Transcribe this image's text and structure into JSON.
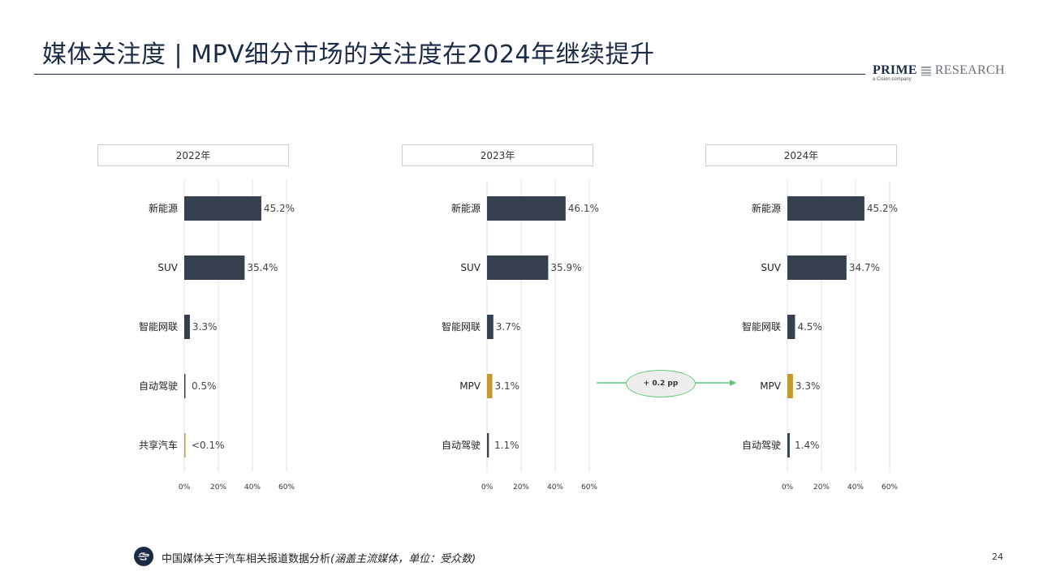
{
  "title": "媒体关注度 | MPV细分市场的关注度在2024年继续提升",
  "logo": {
    "brand_primary": "PRIME",
    "brand_secondary": "RESEARCH",
    "tagline": "a Cision company"
  },
  "colors": {
    "bar_default": "#36404f",
    "bar_highlight": "#c39a2f",
    "callout_arrow": "#5fc87a",
    "title": "#1c2b45",
    "gridline": "#e3e3e3"
  },
  "chart_data": [
    {
      "type": "bar",
      "orientation": "horizontal",
      "title": "2022年",
      "categories": [
        "新能源",
        "SUV",
        "智能网联",
        "自动驾驶",
        "共享汽车"
      ],
      "values": [
        45.2,
        35.4,
        3.3,
        0.5,
        0.05
      ],
      "value_labels": [
        "45.2%",
        "35.4%",
        "3.3%",
        "0.5%",
        "<0.1%"
      ],
      "highlight": [
        false,
        false,
        false,
        false,
        true
      ],
      "xlim": [
        0,
        60
      ],
      "x_ticks": [
        "0%",
        "20%",
        "40%",
        "60%"
      ],
      "grid": true
    },
    {
      "type": "bar",
      "orientation": "horizontal",
      "title": "2023年",
      "categories": [
        "新能源",
        "SUV",
        "智能网联",
        "MPV",
        "自动驾驶"
      ],
      "values": [
        46.1,
        35.9,
        3.7,
        3.1,
        1.1
      ],
      "value_labels": [
        "46.1%",
        "35.9%",
        "3.7%",
        "3.1%",
        "1.1%"
      ],
      "highlight": [
        false,
        false,
        false,
        true,
        false
      ],
      "xlim": [
        0,
        60
      ],
      "x_ticks": [
        "0%",
        "20%",
        "40%",
        "60%"
      ],
      "grid": true
    },
    {
      "type": "bar",
      "orientation": "horizontal",
      "title": "2024年",
      "categories": [
        "新能源",
        "SUV",
        "智能网联",
        "MPV",
        "自动驾驶"
      ],
      "values": [
        45.2,
        34.7,
        4.5,
        3.3,
        1.4
      ],
      "value_labels": [
        "45.2%",
        "34.7%",
        "4.5%",
        "3.3%",
        "1.4%"
      ],
      "highlight": [
        false,
        false,
        false,
        true,
        false
      ],
      "xlim": [
        0,
        60
      ],
      "x_ticks": [
        "0%",
        "20%",
        "40%",
        "60%"
      ],
      "grid": true
    }
  ],
  "callout": {
    "label": "+ 0.2 pp"
  },
  "footer": {
    "source": "中国媒体关于汽车相关报道数据分析",
    "note": "(涵盖主流媒体，单位：受众数)"
  },
  "page_number": "24"
}
